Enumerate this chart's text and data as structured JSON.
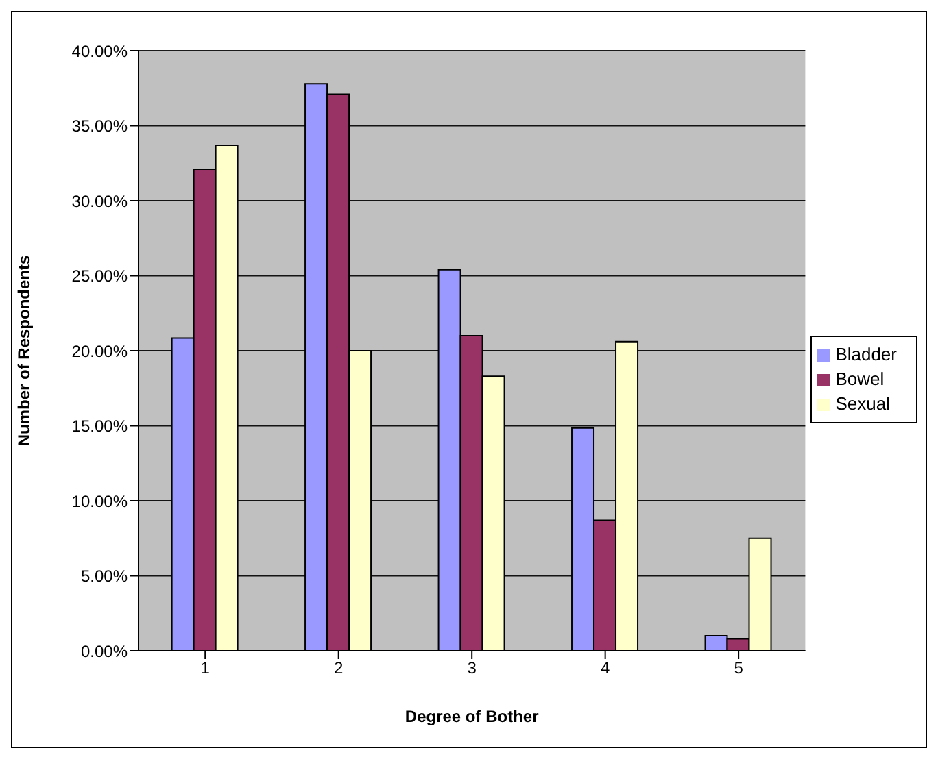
{
  "chart_data": {
    "type": "bar",
    "xlabel": "Degree of Bother",
    "ylabel": "Number of Respondents",
    "categories": [
      "1",
      "2",
      "3",
      "4",
      "5"
    ],
    "series": [
      {
        "name": "Bladder",
        "color": "#9999ff",
        "values": [
          20.85,
          37.8,
          25.4,
          14.85,
          1.0
        ]
      },
      {
        "name": "Bowel",
        "color": "#993366",
        "values": [
          32.1,
          37.1,
          21.0,
          8.7,
          0.8
        ]
      },
      {
        "name": "Sexual",
        "color": "#ffffcc",
        "values": [
          33.7,
          20.0,
          18.3,
          20.6,
          7.5
        ]
      }
    ],
    "ylim": [
      0,
      40
    ],
    "yticks": [
      {
        "value": 0,
        "label": "0.00%"
      },
      {
        "value": 5,
        "label": "5.00%"
      },
      {
        "value": 10,
        "label": "10.00%"
      },
      {
        "value": 15,
        "label": "15.00%"
      },
      {
        "value": 20,
        "label": "20.00%"
      },
      {
        "value": 25,
        "label": "25.00%"
      },
      {
        "value": 30,
        "label": "30.00%"
      },
      {
        "value": 35,
        "label": "35.00%"
      },
      {
        "value": 40,
        "label": "40.00%"
      }
    ],
    "grid": "y",
    "legend": "right"
  }
}
